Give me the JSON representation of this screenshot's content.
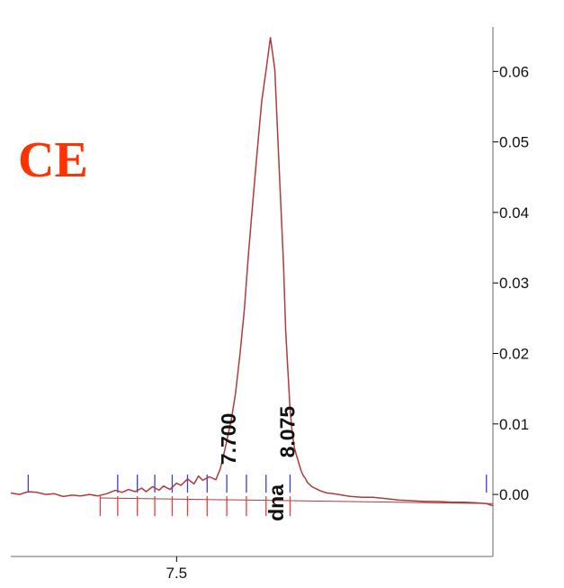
{
  "label": "CE",
  "colors": {
    "label": "#ff3300",
    "trace": "#b03a3a",
    "axis": "#000000",
    "frame": "#9a9a9a",
    "start_tick": "#3a3af0",
    "end_tick": "#f03a3a"
  },
  "chart_data": {
    "type": "line",
    "title": "",
    "xlabel": "",
    "ylabel": "",
    "xlim": [
      6.74,
      8.95
    ],
    "ylim": [
      -0.0088,
      0.0663
    ],
    "x_ticks": [
      7.5
    ],
    "x_tick_labels": [
      "7.5"
    ],
    "y_ticks": [
      0.06,
      0.05,
      0.04,
      0.03,
      0.02,
      0.01,
      0.0
    ],
    "y_tick_labels": [
      "0.06",
      "0.05",
      "0.04",
      "0.03",
      "0.02",
      "0.01",
      "0.00"
    ],
    "y_axis_side": "right",
    "grid": false,
    "series": [
      {
        "x": [
          6.74,
          6.78,
          6.82,
          6.86,
          6.9,
          6.94,
          6.98,
          7.02,
          7.06,
          7.1,
          7.14,
          7.18,
          7.22,
          7.25,
          7.28,
          7.31,
          7.34,
          7.36,
          7.39,
          7.42,
          7.44,
          7.47,
          7.5,
          7.52,
          7.55,
          7.58,
          7.6,
          7.62,
          7.65,
          7.68,
          7.7,
          7.72,
          7.75,
          7.77,
          7.79,
          7.81,
          7.83,
          7.85,
          7.87,
          7.89,
          7.91,
          7.93,
          7.95,
          7.97,
          7.99,
          8.0,
          8.01,
          8.02,
          8.03,
          8.04,
          8.05,
          8.06,
          8.07,
          8.08,
          8.09,
          8.1,
          8.12,
          8.14,
          8.16,
          8.19,
          8.22,
          8.26,
          8.3,
          8.35,
          8.4,
          8.46,
          8.52,
          8.58,
          8.64,
          8.7,
          8.76,
          8.82,
          8.88,
          8.92,
          8.95
        ],
        "y": [
          0.0002,
          0.0,
          0.0004,
          0.0003,
          0.0,
          0.0001,
          -0.0003,
          -0.0001,
          -0.0002,
          0.0,
          -0.0002,
          0.0001,
          0.0006,
          0.0003,
          0.0007,
          0.0004,
          0.0009,
          0.0004,
          0.0011,
          0.0006,
          0.0012,
          0.0007,
          0.0016,
          0.0013,
          0.0022,
          0.0015,
          0.0026,
          0.002,
          0.0025,
          0.0021,
          0.0036,
          0.0062,
          0.0105,
          0.0143,
          0.0198,
          0.026,
          0.0344,
          0.0417,
          0.0489,
          0.0557,
          0.0602,
          0.0648,
          0.0603,
          0.0464,
          0.0326,
          0.0232,
          0.0177,
          0.0122,
          0.0087,
          0.0066,
          0.0055,
          0.0045,
          0.0034,
          0.0027,
          0.0023,
          0.0017,
          0.0011,
          0.0008,
          0.0005,
          0.0002,
          0.0001,
          -0.0001,
          -0.0003,
          -0.0004,
          -0.0004,
          -0.0006,
          -0.0008,
          -0.0009,
          -0.001,
          -0.001,
          -0.0011,
          -0.0011,
          -0.0012,
          -0.0013,
          -0.0016
        ]
      }
    ],
    "baseline": {
      "x": [
        7.15,
        8.95
      ],
      "y": [
        -0.0005,
        -0.0013
      ]
    },
    "integration_start_ticks": [
      6.82,
      7.23,
      7.32,
      7.4,
      7.48,
      7.55,
      7.64,
      7.73,
      7.82,
      7.91,
      8.02,
      8.92
    ],
    "integration_end_ticks": [
      7.15,
      7.23,
      7.32,
      7.4,
      7.48,
      7.55,
      7.64,
      7.73,
      7.82,
      7.91,
      8.02
    ],
    "annotations": [
      {
        "text": "7.700",
        "x": 7.77,
        "y": 0.0042
      },
      {
        "text": "8.075",
        "x": 8.04,
        "y": 0.0052
      },
      {
        "text": "dna",
        "x": 7.99,
        "y": -0.0038
      }
    ]
  }
}
